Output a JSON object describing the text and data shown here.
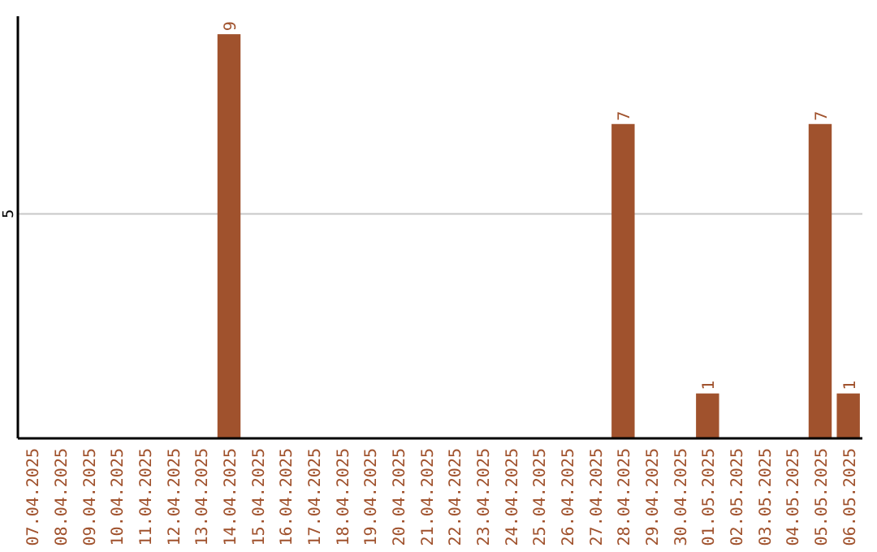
{
  "chart_data": {
    "type": "bar",
    "categories": [
      "07.04.2025",
      "08.04.2025",
      "09.04.2025",
      "10.04.2025",
      "11.04.2025",
      "12.04.2025",
      "13.04.2025",
      "14.04.2025",
      "15.04.2025",
      "16.04.2025",
      "17.04.2025",
      "18.04.2025",
      "19.04.2025",
      "20.04.2025",
      "21.04.2025",
      "22.04.2025",
      "23.04.2025",
      "24.04.2025",
      "25.04.2025",
      "26.04.2025",
      "27.04.2025",
      "28.04.2025",
      "29.04.2025",
      "30.04.2025",
      "01.05.2025",
      "02.05.2025",
      "03.05.2025",
      "04.05.2025",
      "05.05.2025",
      "06.05.2025"
    ],
    "values": [
      0,
      0,
      0,
      0,
      0,
      0,
      0,
      9,
      0,
      0,
      0,
      0,
      0,
      0,
      0,
      0,
      0,
      0,
      0,
      0,
      0,
      7,
      0,
      0,
      1,
      0,
      0,
      0,
      7,
      1
    ],
    "value_labels": [
      null,
      null,
      null,
      null,
      null,
      null,
      null,
      "9",
      null,
      null,
      null,
      null,
      null,
      null,
      null,
      null,
      null,
      null,
      null,
      null,
      null,
      "7",
      null,
      null,
      "1",
      null,
      null,
      null,
      "7",
      "1"
    ],
    "color": "#a0522d",
    "ylim": [
      0,
      9.4
    ],
    "yticks": [
      5
    ],
    "grid": "y"
  }
}
